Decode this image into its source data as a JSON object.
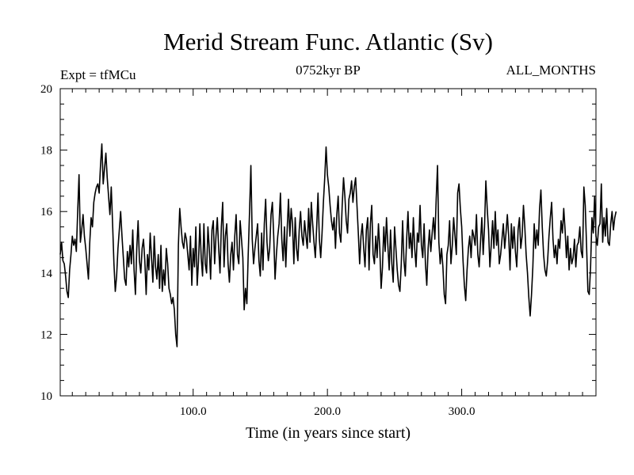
{
  "chart_data": {
    "type": "line",
    "title": "Merid Stream Func. Atlantic (Sv)",
    "subtitle_left": "Expt = tfMCu",
    "subtitle_center": "0752kyr BP",
    "subtitle_right": "ALL_MONTHS",
    "xlabel": "Time (in years since start)",
    "ylabel": "",
    "xlim": [
      1,
      400
    ],
    "ylim": [
      10,
      20
    ],
    "x_tick_labels": [
      {
        "value": 100,
        "label": "100.0"
      },
      {
        "value": 200,
        "label": "200.0"
      },
      {
        "value": 300,
        "label": "300.0"
      }
    ],
    "y_tick_labels": [
      {
        "value": 10,
        "label": "10"
      },
      {
        "value": 12,
        "label": "12"
      },
      {
        "value": 14,
        "label": "14"
      },
      {
        "value": 16,
        "label": "16"
      },
      {
        "value": 18,
        "label": "18"
      },
      {
        "value": 20,
        "label": "20"
      }
    ],
    "series": [
      {
        "name": "Merid Stream Func. Atlantic",
        "x_start": 1,
        "x_step": 1,
        "color": "#000000",
        "values": [
          14.6,
          15.0,
          14.4,
          14.3,
          13.9,
          13.4,
          13.2,
          14.1,
          14.6,
          15.2,
          14.9,
          15.1,
          14.7,
          16.0,
          17.2,
          15.0,
          15.4,
          15.9,
          15.2,
          14.8,
          14.3,
          13.8,
          15.0,
          15.8,
          15.5,
          16.3,
          16.6,
          16.8,
          16.9,
          16.6,
          17.5,
          18.2,
          16.9,
          17.4,
          17.9,
          17.1,
          16.5,
          15.9,
          16.8,
          15.6,
          14.3,
          13.4,
          13.9,
          14.8,
          15.4,
          16.0,
          15.2,
          14.5,
          13.8,
          13.6,
          14.7,
          14.2,
          14.9,
          14.3,
          15.4,
          14.1,
          13.3,
          14.8,
          15.7,
          14.4,
          14.0,
          14.8,
          15.1,
          14.4,
          13.3,
          14.6,
          14.1,
          15.3,
          14.5,
          13.7,
          15.2,
          14.2,
          13.8,
          14.6,
          13.5,
          14.9,
          13.4,
          14.1,
          13.6,
          14.8,
          14.3,
          13.5,
          13.3,
          13.0,
          13.2,
          12.8,
          12.0,
          11.6,
          14.9,
          16.1,
          15.5,
          15.0,
          14.8,
          15.3,
          15.1,
          14.6,
          14.1,
          15.2,
          13.6,
          14.8,
          14.2,
          15.5,
          13.6,
          14.4,
          15.6,
          14.5,
          13.9,
          15.6,
          14.3,
          14.0,
          15.5,
          14.8,
          13.8,
          15.4,
          15.7,
          14.3,
          15.2,
          15.8,
          14.8,
          14.0,
          15.5,
          16.3,
          14.2,
          15.2,
          15.6,
          14.3,
          13.7,
          14.6,
          15.0,
          14.1,
          15.2,
          15.9,
          14.6,
          14.3,
          15.7,
          15.1,
          14.5,
          12.8,
          13.5,
          13.0,
          14.6,
          16.0,
          17.5,
          15.1,
          14.3,
          14.8,
          15.2,
          15.6,
          14.4,
          13.9,
          15.3,
          14.1,
          15.6,
          16.4,
          15.0,
          14.4,
          14.8,
          15.9,
          16.3,
          15.2,
          13.8,
          14.6,
          15.2,
          15.6,
          16.6,
          15.1,
          14.4,
          15.5,
          14.2,
          15.4,
          16.4,
          15.2,
          16.1,
          15.6,
          14.3,
          15.8,
          14.8,
          14.4,
          15.4,
          16.0,
          15.2,
          14.9,
          15.7,
          15.2,
          14.8,
          16.1,
          15.0,
          16.3,
          15.6,
          15.0,
          14.5,
          15.5,
          16.6,
          15.1,
          14.5,
          15.3,
          16.3,
          17.1,
          18.1,
          17.2,
          16.8,
          16.2,
          15.7,
          15.4,
          15.8,
          14.8,
          15.9,
          16.5,
          15.3,
          15.0,
          16.2,
          17.1,
          16.5,
          15.7,
          15.3,
          16.4,
          16.6,
          17.0,
          16.3,
          16.8,
          17.1,
          16.2,
          15.3,
          14.3,
          15.2,
          15.6,
          14.8,
          14.2,
          15.4,
          15.8,
          14.1,
          15.6,
          16.2,
          14.6,
          14.3,
          15.2,
          14.5,
          15.6,
          14.8,
          13.5,
          14.2,
          15.5,
          14.7,
          15.8,
          14.9,
          14.1,
          15.4,
          14.3,
          13.7,
          15.5,
          14.8,
          14.1,
          13.6,
          13.4,
          14.3,
          15.7,
          14.4,
          13.9,
          15.1,
          16.0,
          14.8,
          15.3,
          14.5,
          15.8,
          14.8,
          14.2,
          15.3,
          15.0,
          16.2,
          14.9,
          14.5,
          15.6,
          14.3,
          13.6,
          14.8,
          15.4,
          14.7,
          15.3,
          15.8,
          15.1,
          16.4,
          17.5,
          15.0,
          14.3,
          14.8,
          14.2,
          13.3,
          13.0,
          14.6,
          14.9,
          15.7,
          14.3,
          14.9,
          15.8,
          15.2,
          14.6,
          16.6,
          16.9,
          16.1,
          15.5,
          14.4,
          13.6,
          13.1,
          14.1,
          14.8,
          15.2,
          14.5,
          15.4,
          15.2,
          14.9,
          15.9,
          14.6,
          14.2,
          15.0,
          15.8,
          14.6,
          15.5,
          17.0,
          16.1,
          15.4,
          14.2,
          14.9,
          15.7,
          14.8,
          16.0,
          14.9,
          15.4,
          14.3,
          14.6,
          15.1,
          15.6,
          14.8,
          15.3,
          15.9,
          15.2,
          14.1,
          15.6,
          14.8,
          15.5,
          14.7,
          14.2,
          15.4,
          15.8,
          14.8,
          15.2,
          16.2,
          15.5,
          14.6,
          14.0,
          13.2,
          12.6,
          13.3,
          14.2,
          15.6,
          14.8,
          15.4,
          14.9,
          16.1,
          16.7,
          15.5,
          14.6,
          14.1,
          13.9,
          14.4,
          15.2,
          15.8,
          16.3,
          15.1,
          14.5,
          14.9,
          14.3,
          15.1,
          14.8,
          15.7,
          15.3,
          16.1,
          15.4,
          14.5,
          15.2,
          14.1,
          14.8,
          14.3,
          14.5,
          15.1,
          14.2,
          14.9,
          15.0,
          15.5,
          14.7,
          14.5,
          16.8,
          16.2,
          14.9,
          13.4,
          13.3,
          14.2,
          15.8,
          15.3,
          16.5,
          15.2,
          14.9,
          15.5,
          15.6,
          16.9,
          15.0,
          15.8,
          15.2,
          16.1,
          15.0,
          14.9,
          15.6,
          16.0,
          15.4,
          15.8,
          16.0
        ]
      }
    ]
  }
}
